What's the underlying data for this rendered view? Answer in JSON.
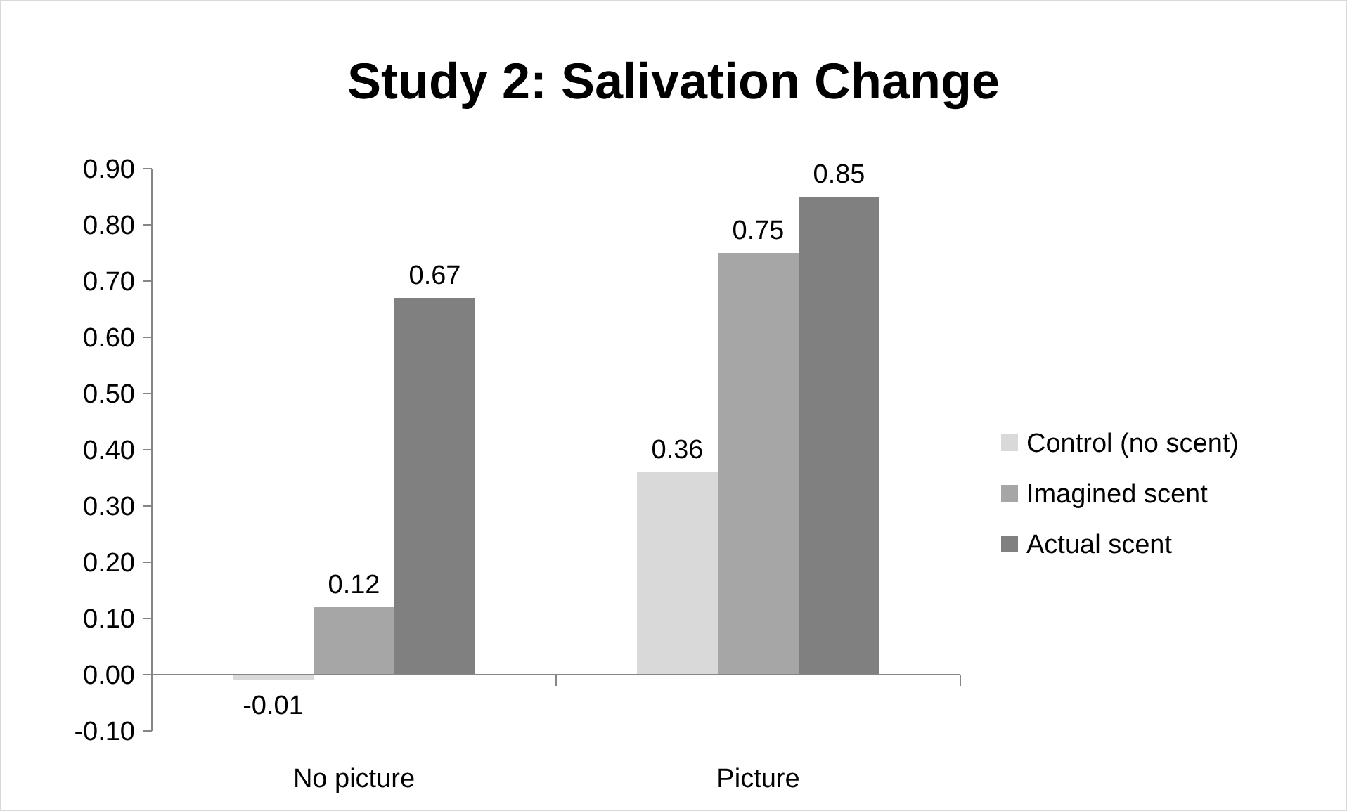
{
  "chart_data": {
    "type": "bar",
    "title": "Study 2: Salivation Change",
    "categories": [
      "No picture",
      "Picture"
    ],
    "series": [
      {
        "name": "Control (no scent)",
        "color": "#d9d9d9",
        "values": [
          -0.01,
          0.36
        ]
      },
      {
        "name": "Imagined scent",
        "color": "#a6a6a6",
        "values": [
          0.12,
          0.75
        ]
      },
      {
        "name": "Actual scent",
        "color": "#808080",
        "values": [
          0.67,
          0.85
        ]
      }
    ],
    "value_labels": [
      [
        "-0.01",
        "0.36"
      ],
      [
        "0.12",
        "0.75"
      ],
      [
        "0.67",
        "0.85"
      ]
    ],
    "ylim": [
      -0.1,
      0.9
    ],
    "yticks": [
      {
        "value": -0.1,
        "label": "-0.10"
      },
      {
        "value": 0,
        "label": "0.00"
      },
      {
        "value": 0.1,
        "label": "0.10"
      },
      {
        "value": 0.2,
        "label": "0.20"
      },
      {
        "value": 0.3,
        "label": "0.30"
      },
      {
        "value": 0.4,
        "label": "0.40"
      },
      {
        "value": 0.5,
        "label": "0.50"
      },
      {
        "value": 0.6,
        "label": "0.60"
      },
      {
        "value": 0.7,
        "label": "0.70"
      },
      {
        "value": 0.8,
        "label": "0.80"
      },
      {
        "value": 0.9,
        "label": "0.90"
      }
    ],
    "legend": "right"
  }
}
